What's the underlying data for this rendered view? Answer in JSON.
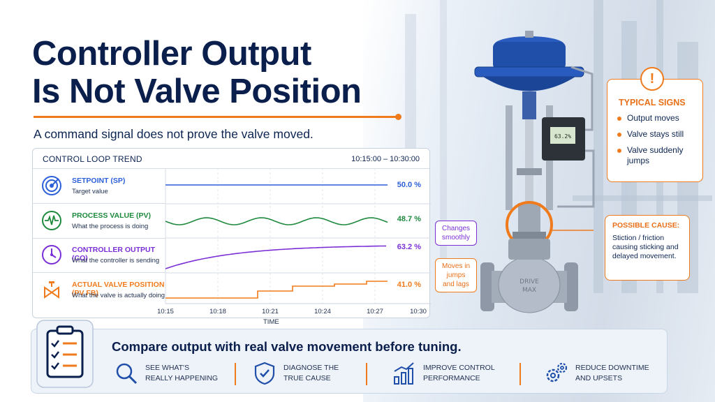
{
  "header": {
    "title_line1": "Controller Output",
    "title_line2": "Is Not Valve Position",
    "subtitle": "A command signal does not prove the valve moved."
  },
  "trend": {
    "title": "CONTROL LOOP TREND",
    "time_range": "10:15:00   –   10:30:00",
    "signals": [
      {
        "name": "SETPOINT (SP)",
        "desc": "Target value",
        "value": "50.0 %",
        "color": "#2b5fd9",
        "icon": "target-icon"
      },
      {
        "name": "PROCESS VALUE (PV)",
        "desc": "What the process is doing",
        "value": "48.7 %",
        "color": "#1e8a3e",
        "icon": "pulse-icon"
      },
      {
        "name": "CONTROLLER OUTPUT (CO)",
        "desc": "What the controller is sending",
        "value": "63.2 %",
        "color": "#7b2fd6",
        "icon": "gauge-icon"
      },
      {
        "name": "ACTUAL VALVE POSITION (PV FB)",
        "desc": "What the valve is actually doing",
        "value": "41.0 %",
        "color": "#f07b1c",
        "icon": "valve-icon"
      }
    ],
    "x_ticks": [
      "10:15",
      "10:18",
      "10:21",
      "10:24",
      "10:27",
      "10:30"
    ],
    "x_label": "TIME",
    "callout_co": "Changes\nsmoothly",
    "callout_fb": "Moves in\njumps\nand lags"
  },
  "chart_data": {
    "type": "line",
    "x": [
      "10:15",
      "10:18",
      "10:21",
      "10:24",
      "10:27",
      "10:30"
    ],
    "xlabel": "TIME",
    "series": [
      {
        "name": "SETPOINT (SP)",
        "final_value": 50.0
      },
      {
        "name": "PROCESS VALUE (PV)",
        "final_value": 48.7
      },
      {
        "name": "CONTROLLER OUTPUT (CO)",
        "final_value": 63.2
      },
      {
        "name": "ACTUAL VALVE POSITION (PV FB)",
        "final_value": 41.0
      }
    ]
  },
  "valve": {
    "positioner_display": "63.2%",
    "body_text": "DRIVE\nMAX"
  },
  "typical_signs": {
    "badge": "!",
    "title": "TYPICAL SIGNS",
    "items": [
      "Output moves",
      "Valve stays still",
      "Valve suddenly jumps"
    ]
  },
  "possible_cause": {
    "title": "POSSIBLE CAUSE:",
    "text": "Stiction / friction causing sticking and delayed movement."
  },
  "banner": {
    "title": "Compare output with real valve movement before tuning.",
    "features": [
      {
        "line1": "SEE WHAT'S",
        "line2": "REALLY HAPPENING",
        "icon": "magnifier-icon"
      },
      {
        "line1": "DIAGNOSE THE",
        "line2": "TRUE CAUSE",
        "icon": "shield-check-icon"
      },
      {
        "line1": "IMPROVE CONTROL",
        "line2": "PERFORMANCE",
        "icon": "bar-growth-icon"
      },
      {
        "line1": "REDUCE DOWNTIME",
        "line2": "AND UPSETS",
        "icon": "gears-icon"
      }
    ]
  },
  "colors": {
    "accent": "#f07b1c",
    "navy": "#0b1f4d",
    "valve_blue": "#1f4fa8"
  }
}
